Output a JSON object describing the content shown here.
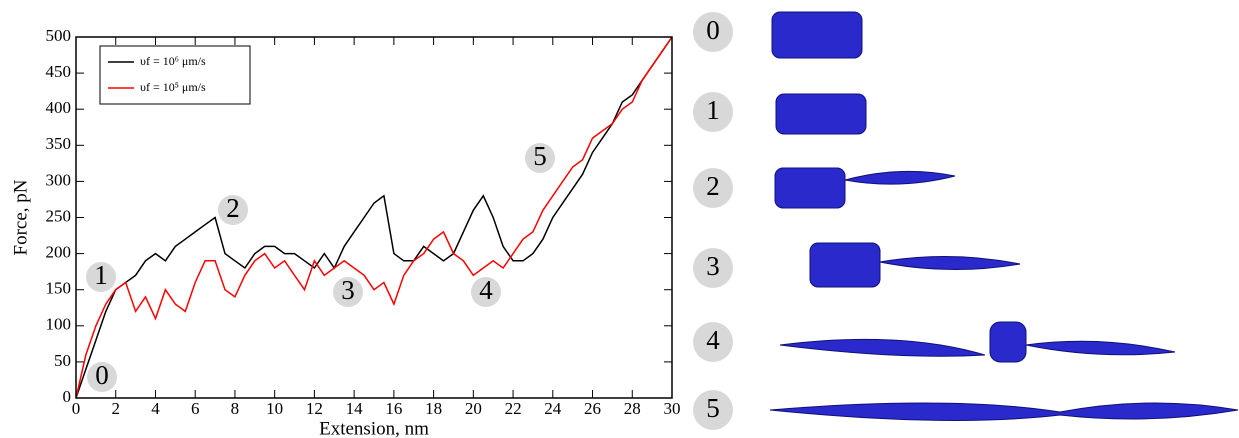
{
  "chart_data": {
    "type": "line",
    "x_label": "Extension, nm",
    "y_label": "Force, pN",
    "x": [
      0,
      0.5,
      1,
      1.5,
      2,
      2.5,
      3,
      3.5,
      4,
      4.5,
      5,
      5.5,
      6,
      6.5,
      7,
      7.5,
      8,
      8.5,
      9,
      9.5,
      10,
      10.5,
      11,
      11.5,
      12,
      12.5,
      13,
      13.5,
      14,
      14.5,
      15,
      15.5,
      16,
      16.5,
      17,
      17.5,
      18,
      18.5,
      19,
      19.5,
      20,
      20.5,
      21,
      21.5,
      22,
      22.5,
      23,
      23.5,
      24,
      24.5,
      25,
      25.5,
      26,
      26.5,
      27,
      27.5,
      28,
      28.5,
      29,
      29.5,
      30
    ],
    "series": [
      {
        "name": "υf = 10⁶ μm/s",
        "color": "#000000",
        "values": [
          0,
          40,
          80,
          120,
          150,
          160,
          170,
          190,
          200,
          190,
          210,
          220,
          230,
          240,
          250,
          200,
          190,
          180,
          200,
          210,
          210,
          200,
          200,
          190,
          180,
          200,
          180,
          210,
          230,
          250,
          270,
          280,
          200,
          190,
          190,
          210,
          200,
          190,
          200,
          230,
          260,
          280,
          250,
          210,
          190,
          190,
          200,
          220,
          250,
          270,
          290,
          310,
          340,
          360,
          380,
          410,
          420,
          440,
          460,
          480,
          500
        ]
      },
      {
        "name": "υf = 10⁵ μm/s",
        "color": "#ff0000",
        "values": [
          0,
          60,
          100,
          130,
          150,
          160,
          120,
          140,
          110,
          150,
          130,
          120,
          160,
          190,
          190,
          150,
          140,
          170,
          190,
          200,
          180,
          190,
          170,
          150,
          190,
          170,
          180,
          190,
          180,
          170,
          150,
          160,
          130,
          170,
          190,
          200,
          220,
          230,
          200,
          190,
          170,
          180,
          190,
          180,
          200,
          220,
          230,
          260,
          280,
          300,
          320,
          330,
          360,
          370,
          380,
          400,
          410,
          440,
          460,
          480,
          500
        ]
      }
    ],
    "xlim": [
      0,
      30
    ],
    "ylim": [
      0,
      500
    ],
    "xticks": [
      0,
      2,
      4,
      6,
      8,
      10,
      12,
      14,
      16,
      18,
      20,
      22,
      24,
      26,
      28,
      30
    ],
    "yticks": [
      0,
      50,
      100,
      150,
      200,
      250,
      300,
      350,
      400,
      450,
      500
    ],
    "legend": "upper left",
    "annotations": [
      "0",
      "1",
      "2",
      "3",
      "4",
      "5"
    ]
  },
  "stages": [
    "0",
    "1",
    "2",
    "3",
    "4",
    "5"
  ]
}
